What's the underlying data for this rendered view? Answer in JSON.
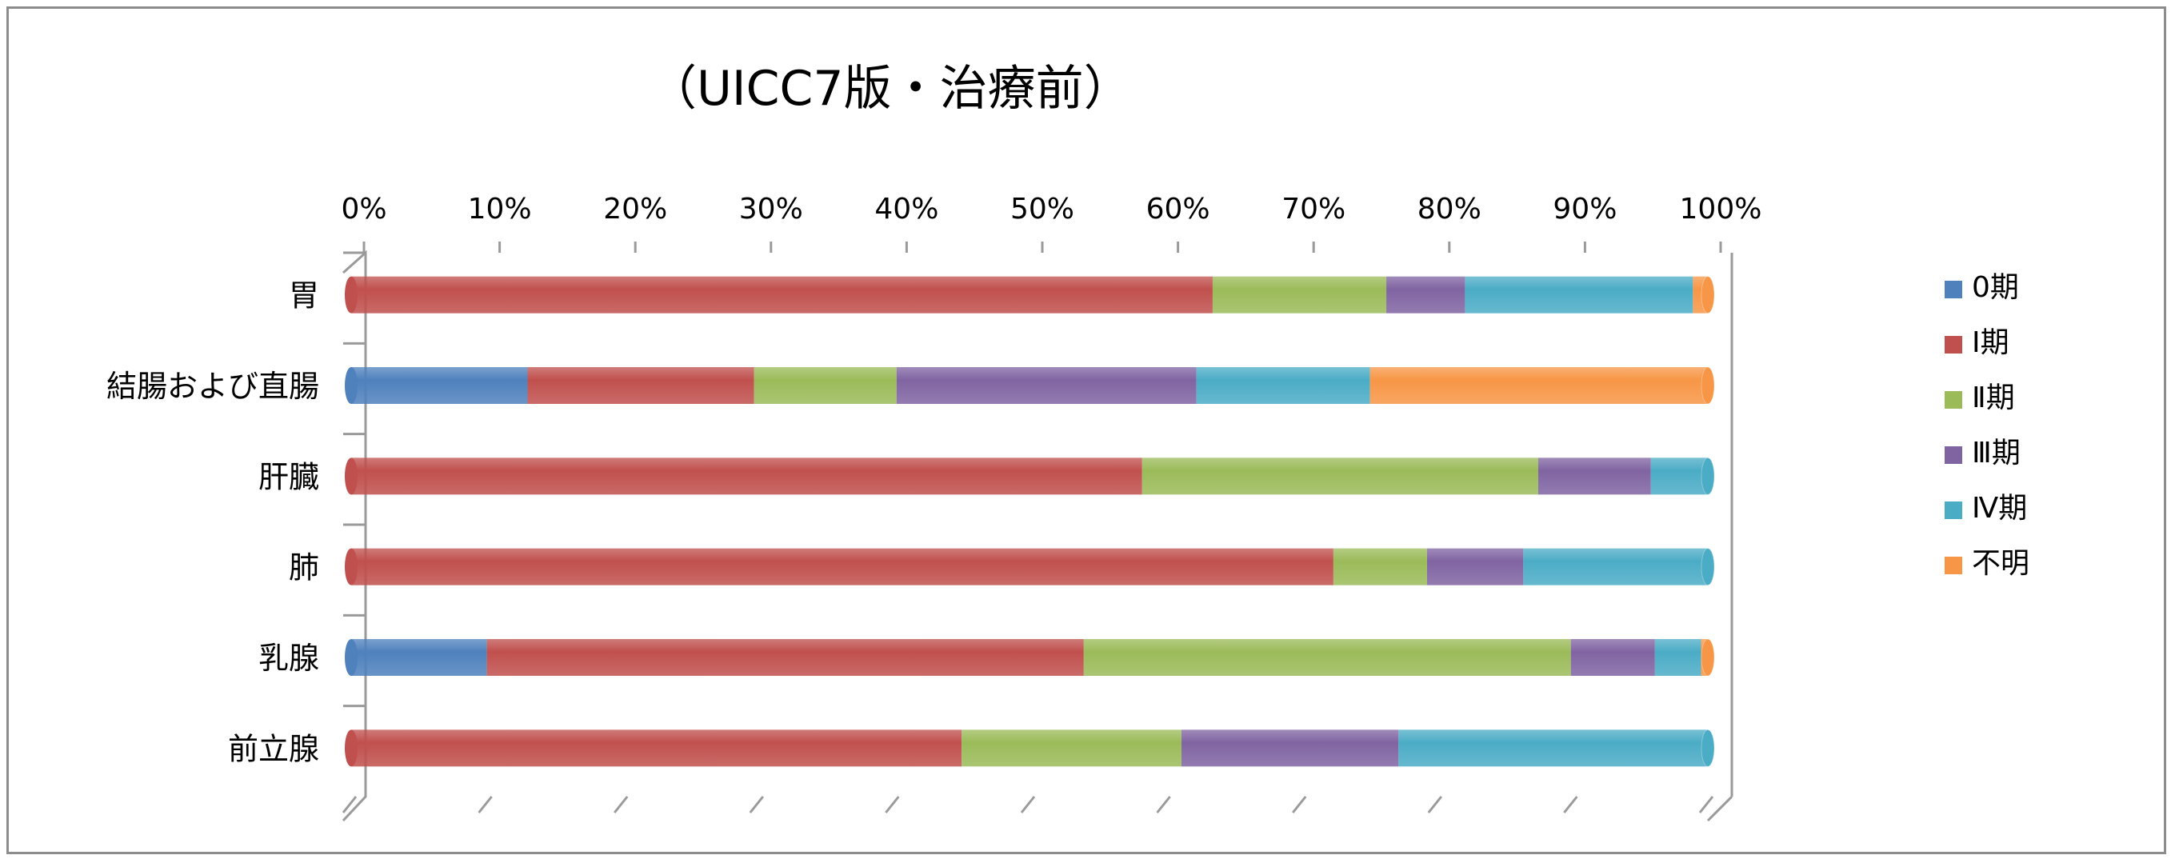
{
  "chart_data": {
    "type": "bar",
    "orientation": "horizontal",
    "stacked": "percent",
    "title": "（UICC7版・治療前）",
    "xlim": [
      0,
      100
    ],
    "x_ticks": [
      "0%",
      "10%",
      "20%",
      "30%",
      "40%",
      "50%",
      "60%",
      "70%",
      "80%",
      "90%",
      "100%"
    ],
    "categories": [
      "胃",
      "結腸および直腸",
      "肝臓",
      "肺",
      "乳腺",
      "前立腺"
    ],
    "series": [
      {
        "name": "0期",
        "color": "#4F81BD",
        "values": [
          0,
          13,
          0,
          0,
          10,
          0
        ]
      },
      {
        "name": "Ⅰ期",
        "color": "#C0504D",
        "values": [
          63.5,
          16.7,
          58.3,
          72.4,
          44,
          45
        ]
      },
      {
        "name": "Ⅱ期",
        "color": "#9BBB59",
        "values": [
          12.8,
          10.5,
          29.2,
          6.9,
          35.9,
          16.2
        ]
      },
      {
        "name": "Ⅲ期",
        "color": "#8064A2",
        "values": [
          5.8,
          22.1,
          8.3,
          7.1,
          6.2,
          16
        ]
      },
      {
        "name": "Ⅳ期",
        "color": "#4BACC6",
        "values": [
          16.8,
          12.8,
          4.2,
          13.6,
          3.4,
          22.8
        ]
      },
      {
        "name": "不明",
        "color": "#F79646",
        "values": [
          1.1,
          24.9,
          0,
          0,
          0.5,
          0
        ]
      }
    ],
    "legend_position": "right",
    "grid": false
  }
}
